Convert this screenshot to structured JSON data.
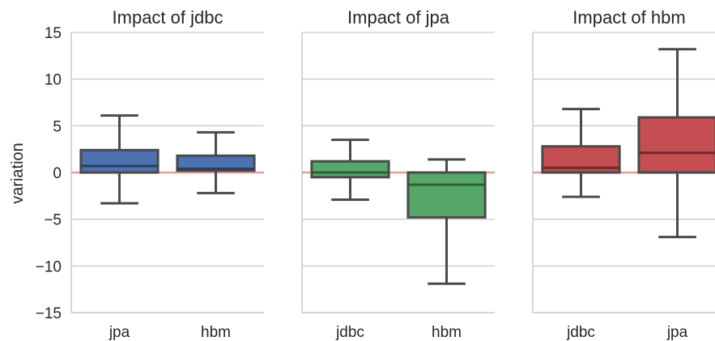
{
  "chart_data": {
    "type": "box",
    "ylabel": "variation",
    "ylim": [
      -15,
      15
    ],
    "yticks": [
      15,
      10,
      5,
      0,
      -5,
      -10,
      -15
    ],
    "ytick_labels": [
      "15",
      "10",
      "5",
      "0",
      "−5",
      "−10",
      "−15"
    ],
    "reference_line": {
      "y": 0,
      "color": "#e99a9c"
    },
    "grid": "horizontal",
    "panels": [
      {
        "title": "Impact of jdbc",
        "color": "#4c72b0",
        "boxes": [
          {
            "category": "jpa",
            "whisker_low": -3.3,
            "q1": 0.0,
            "median": 0.7,
            "q3": 2.4,
            "whisker_high": 6.1
          },
          {
            "category": "hbm",
            "whisker_low": -2.2,
            "q1": 0.2,
            "median": 0.4,
            "q3": 1.8,
            "whisker_high": 4.3
          }
        ]
      },
      {
        "title": "Impact of jpa",
        "color": "#55a868",
        "boxes": [
          {
            "category": "jdbc",
            "whisker_low": -2.9,
            "q1": -0.5,
            "median": 0.0,
            "q3": 1.2,
            "whisker_high": 3.5
          },
          {
            "category": "hbm",
            "whisker_low": -11.9,
            "q1": -4.8,
            "median": -1.3,
            "q3": 0.0,
            "whisker_high": 1.4
          }
        ]
      },
      {
        "title": "Impact of hbm",
        "color": "#c44e52",
        "boxes": [
          {
            "category": "jdbc",
            "whisker_low": -2.6,
            "q1": 0.0,
            "median": 0.5,
            "q3": 2.8,
            "whisker_high": 6.8
          },
          {
            "category": "jpa",
            "whisker_low": -6.9,
            "q1": 0.0,
            "median": 2.1,
            "q3": 5.9,
            "whisker_high": 13.2
          }
        ]
      }
    ]
  }
}
